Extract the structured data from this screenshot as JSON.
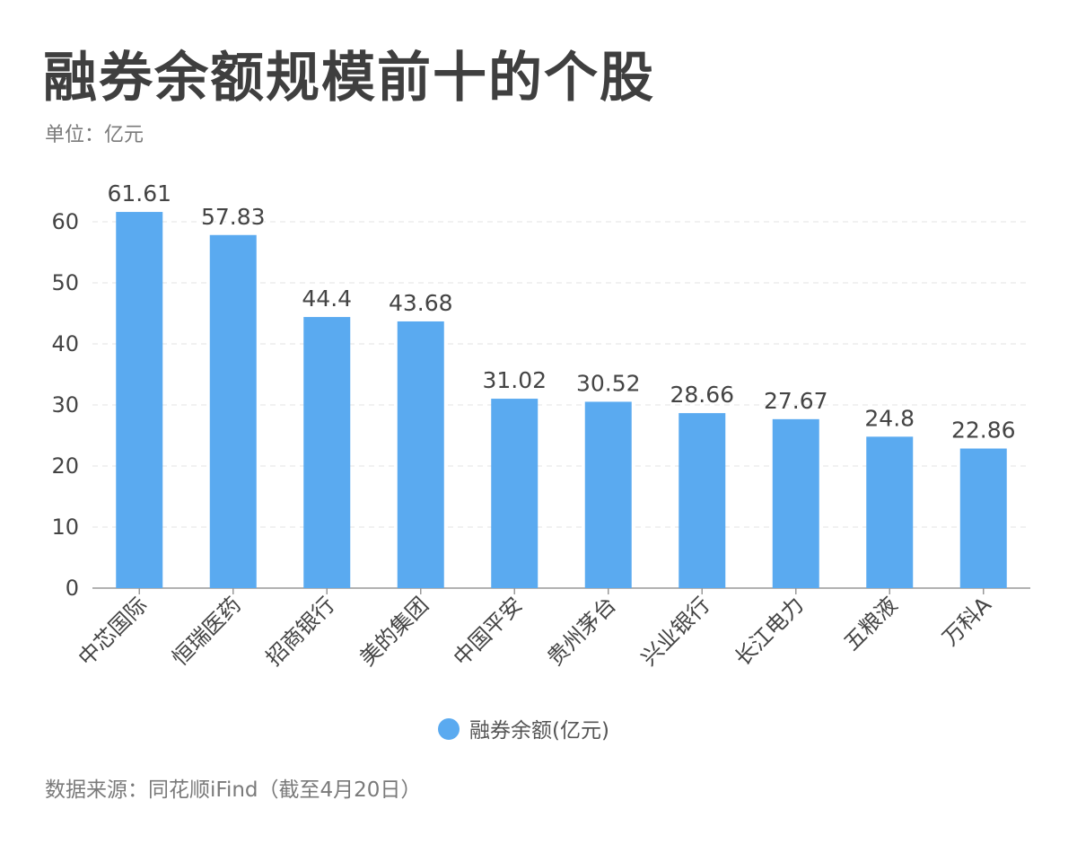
{
  "title": "融券余额规模前十的个股",
  "unit": "单位：亿元",
  "source": "数据来源：同花顺iFind（截至4月20日）",
  "colors": {
    "bar": "#5aaaf0",
    "text": "#444444",
    "grid": "#e3e3e3"
  },
  "chart_data": {
    "type": "bar",
    "title": "融券余额规模前十的个股",
    "categories": [
      "中芯国际",
      "恒瑞医药",
      "招商银行",
      "美的集团",
      "中国平安",
      "贵州茅台",
      "兴业银行",
      "长江电力",
      "五粮液",
      "万科A"
    ],
    "series": [
      {
        "name": "融券余额(亿元)",
        "values": [
          61.61,
          57.83,
          44.4,
          43.68,
          31.02,
          30.52,
          28.66,
          27.67,
          24.8,
          22.86
        ]
      }
    ],
    "value_labels": [
      "61.61",
      "57.83",
      "44.4",
      "43.68",
      "31.02",
      "30.52",
      "28.66",
      "27.67",
      "24.8",
      "22.86"
    ],
    "yticks": [
      "0",
      "10",
      "20",
      "30",
      "40",
      "50",
      "60"
    ],
    "ylim": [
      0,
      60
    ],
    "xlabel": "",
    "ylabel": "",
    "grid": true,
    "legend_position": "bottom-center"
  }
}
